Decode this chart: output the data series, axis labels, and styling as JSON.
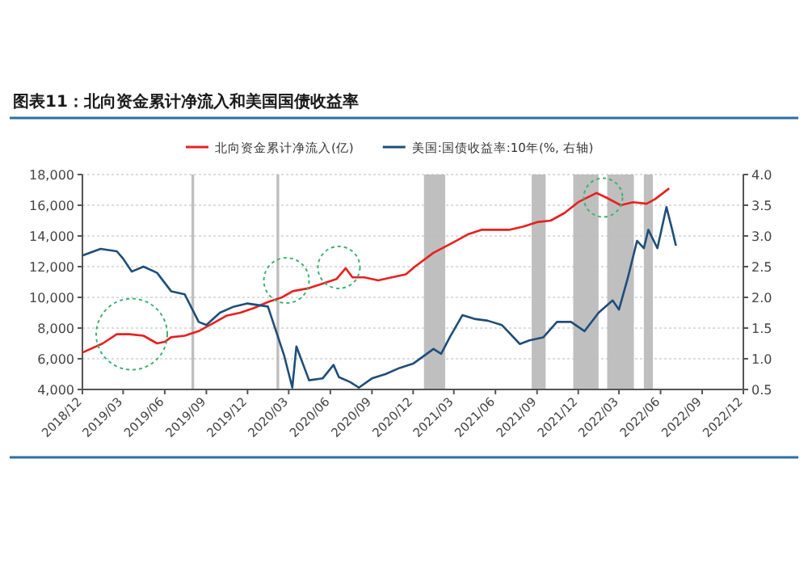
{
  "chart_data": {
    "type": "line",
    "title": "图表11：北向资金累计净流入和美国国债收益率",
    "xlim": [
      "2018-12",
      "2022-12"
    ],
    "xticks": [
      {
        "value": "2018-12",
        "label": "2018/12"
      },
      {
        "value": "2019-03",
        "label": "2019/03"
      },
      {
        "value": "2019-06",
        "label": "2019/06"
      },
      {
        "value": "2019-09",
        "label": "2019/09"
      },
      {
        "value": "2019-12",
        "label": "2019/12"
      },
      {
        "value": "2020-03",
        "label": "2020/03"
      },
      {
        "value": "2020-06",
        "label": "2020/06"
      },
      {
        "value": "2020-09",
        "label": "2020/09"
      },
      {
        "value": "2020-12",
        "label": "2020/12"
      },
      {
        "value": "2021-03",
        "label": "2021/03"
      },
      {
        "value": "2021-06",
        "label": "2021/06"
      },
      {
        "value": "2021-09",
        "label": "2021/09"
      },
      {
        "value": "2021-12",
        "label": "2021/12"
      },
      {
        "value": "2022-03",
        "label": "2022/03"
      },
      {
        "value": "2022-06",
        "label": "2022/06"
      },
      {
        "value": "2022-09",
        "label": "2022/09"
      },
      {
        "value": "2022-12",
        "label": "2022/12"
      }
    ],
    "ylim": [
      4000,
      18000
    ],
    "yticks": [
      {
        "value": 4000,
        "label": "4,000"
      },
      {
        "value": 6000,
        "label": "6,000"
      },
      {
        "value": 8000,
        "label": "8,000"
      },
      {
        "value": 10000,
        "label": "10,000"
      },
      {
        "value": 12000,
        "label": "12,000"
      },
      {
        "value": 14000,
        "label": "14,000"
      },
      {
        "value": 16000,
        "label": "16,000"
      },
      {
        "value": 18000,
        "label": "18,000"
      }
    ],
    "y2lim": [
      0.5,
      4.0
    ],
    "y2ticks": [
      0.5,
      {
        "value": 1,
        "label": "1.0"
      },
      1.5,
      {
        "value": 2,
        "label": "2.0"
      },
      2.5,
      {
        "value": 3,
        "label": "3.0"
      },
      3.5,
      {
        "value": 4,
        "label": "4.0"
      }
    ],
    "grid": "y",
    "legend": "top",
    "marker": "none",
    "line_style": "solid",
    "bands": [
      {
        "axis": "x",
        "from": "2019-07-30",
        "to": "2019-08-05",
        "color": "#bfbfbf"
      },
      {
        "axis": "x",
        "from": "2020-02-03",
        "to": "2020-02-09",
        "color": "#bfbfbf"
      },
      {
        "axis": "x",
        "from": "2020-12-25",
        "to": "2021-02-10",
        "color": "#bfbfbf"
      },
      {
        "axis": "x",
        "from": "2021-08-20",
        "to": "2021-09-20",
        "color": "#bfbfbf"
      },
      {
        "axis": "x",
        "from": "2021-11-20",
        "to": "2022-01-15",
        "color": "#bfbfbf"
      },
      {
        "axis": "x",
        "from": "2022-02-03",
        "to": "2022-04-03",
        "color": "#bfbfbf"
      },
      {
        "axis": "x",
        "from": "2022-04-25",
        "to": "2022-05-15",
        "color": "#bfbfbf"
      }
    ],
    "series": [
      {
        "name": "北向资金累计净流入(亿)",
        "color": "#e8201f",
        "x": [
          "2018-12-01",
          "2019-01-15",
          "2019-02-15",
          "2019-03-15",
          "2019-04-15",
          "2019-05-15",
          "2019-06-01",
          "2019-06-15",
          "2019-07-15",
          "2019-08-15",
          "2019-09-15",
          "2019-10-15",
          "2019-11-15",
          "2019-12-15",
          "2020-01-15",
          "2020-02-15",
          "2020-03-10",
          "2020-04-15",
          "2020-05-15",
          "2020-06-15",
          "2020-07-05",
          "2020-07-20",
          "2020-08-15",
          "2020-09-15",
          "2020-10-15",
          "2020-11-15",
          "2020-12-05",
          "2021-01-15",
          "2021-03-01",
          "2021-04-01",
          "2021-05-01",
          "2021-07-01",
          "2021-08-01",
          "2021-09-01",
          "2021-10-01",
          "2021-11-01",
          "2021-12-01",
          "2022-01-10",
          "2022-02-01",
          "2022-03-05",
          "2022-04-01",
          "2022-05-01",
          "2022-05-20",
          "2022-06-20"
        ],
        "values": [
          6400,
          7000,
          7600,
          7600,
          7500,
          7000,
          7100,
          7400,
          7500,
          7800,
          8300,
          8800,
          9000,
          9300,
          9700,
          10000,
          10400,
          10600,
          10900,
          11200,
          11900,
          11300,
          11300,
          11100,
          11300,
          11500,
          12000,
          12900,
          13600,
          14100,
          14400,
          14400,
          14600,
          14900,
          15000,
          15500,
          16200,
          16800,
          16500,
          16000,
          16200,
          16100,
          16400,
          17100
        ]
      },
      {
        "name": "美国:国债收益率:10年(%, 右轴)",
        "color": "#1f4e79",
        "axis": "y2",
        "x": [
          "2018-12-01",
          "2019-01-10",
          "2019-02-15",
          "2019-03-01",
          "2019-03-20",
          "2019-04-15",
          "2019-05-15",
          "2019-06-15",
          "2019-07-15",
          "2019-08-15",
          "2019-09-01",
          "2019-10-01",
          "2019-11-01",
          "2019-12-01",
          "2020-01-15",
          "2020-02-20",
          "2020-03-09",
          "2020-03-18",
          "2020-04-15",
          "2020-05-15",
          "2020-06-08",
          "2020-06-20",
          "2020-07-15",
          "2020-08-03",
          "2020-09-01",
          "2020-10-01",
          "2020-11-01",
          "2020-12-01",
          "2021-01-15",
          "2021-02-01",
          "2021-02-20",
          "2021-03-20",
          "2021-04-15",
          "2021-05-15",
          "2021-06-15",
          "2021-07-25",
          "2021-08-15",
          "2021-09-15",
          "2021-10-15",
          "2021-11-15",
          "2021-12-15",
          "2022-01-15",
          "2022-02-15",
          "2022-03-01",
          "2022-03-20",
          "2022-04-10",
          "2022-04-25",
          "2022-05-05",
          "2022-05-25",
          "2022-06-14",
          "2022-06-25",
          "2022-07-05"
        ],
        "values": [
          2.68,
          2.79,
          2.75,
          2.63,
          2.42,
          2.5,
          2.4,
          2.1,
          2.05,
          1.6,
          1.55,
          1.75,
          1.85,
          1.9,
          1.85,
          1.05,
          0.53,
          1.2,
          0.65,
          0.68,
          0.9,
          0.7,
          0.62,
          0.53,
          0.68,
          0.75,
          0.85,
          0.92,
          1.16,
          1.08,
          1.35,
          1.71,
          1.65,
          1.62,
          1.55,
          1.24,
          1.3,
          1.35,
          1.6,
          1.6,
          1.45,
          1.75,
          1.95,
          1.8,
          2.3,
          2.92,
          2.8,
          3.1,
          2.8,
          3.47,
          3.15,
          2.84
        ]
      }
    ]
  }
}
